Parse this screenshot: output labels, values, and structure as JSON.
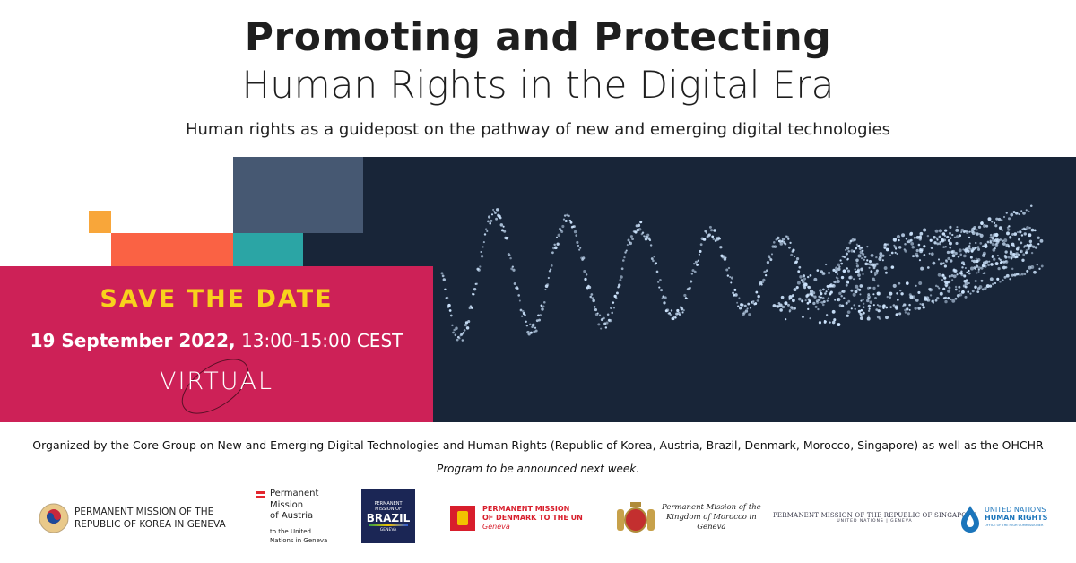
{
  "header": {
    "title_line1": "Promoting and Protecting",
    "title_line2": "Human Rights in the Digital Era",
    "subtitle": "Human rights as a guidepost on the pathway of new and emerging digital technologies"
  },
  "banner": {
    "save_the_date": "SAVE THE DATE",
    "date": "19 September 2022,",
    "time": " 13:00-15:00 CEST",
    "format": "VIRTUAL",
    "colors": {
      "pink": "#cd2157",
      "yellow": "#f8d21c",
      "navy": "#182538",
      "slate": "#465872",
      "coral": "#fa6244",
      "teal": "#2ba5a5",
      "orange": "#f8a63a"
    }
  },
  "footer": {
    "organized_by": "Organized by the Core Group on New and Emerging Digital Technologies and Human Rights (Republic of Korea, Austria, Brazil, Denmark, Morocco, Singapore) as well as the OHCHR",
    "program_note": "Program to be announced next week."
  },
  "logos": {
    "korea": {
      "line1": "PERMANENT MISSION OF THE",
      "line2": "REPUBLIC OF KOREA IN GENEVA"
    },
    "austria": {
      "line1": "Permanent",
      "line2": "Mission",
      "line3": "of Austria",
      "line4": "to the United",
      "line5": "Nations in Geneva"
    },
    "brazil": {
      "line1": "PERMANENT",
      "line2": "MISSION OF",
      "line3": "BRAZIL",
      "line4": "GENEVA"
    },
    "denmark": {
      "line1": "PERMANENT MISSION",
      "line2": "OF DENMARK TO THE UN",
      "line3": "Geneva"
    },
    "morocco": {
      "line1": "Permanent Mission of the",
      "line2": "Kingdom of Morocco in",
      "line3": "Geneva"
    },
    "singapore": {
      "line1": "PERMANENT MISSION OF THE REPUBLIC OF SINGAPORE",
      "line2": "UNITED NATIONS | GENEVA"
    },
    "ohchr": {
      "line1": "UNITED NATIONS",
      "line2": "HUMAN RIGHTS",
      "line3": "OFFICE OF THE HIGH COMMISSIONER"
    }
  }
}
